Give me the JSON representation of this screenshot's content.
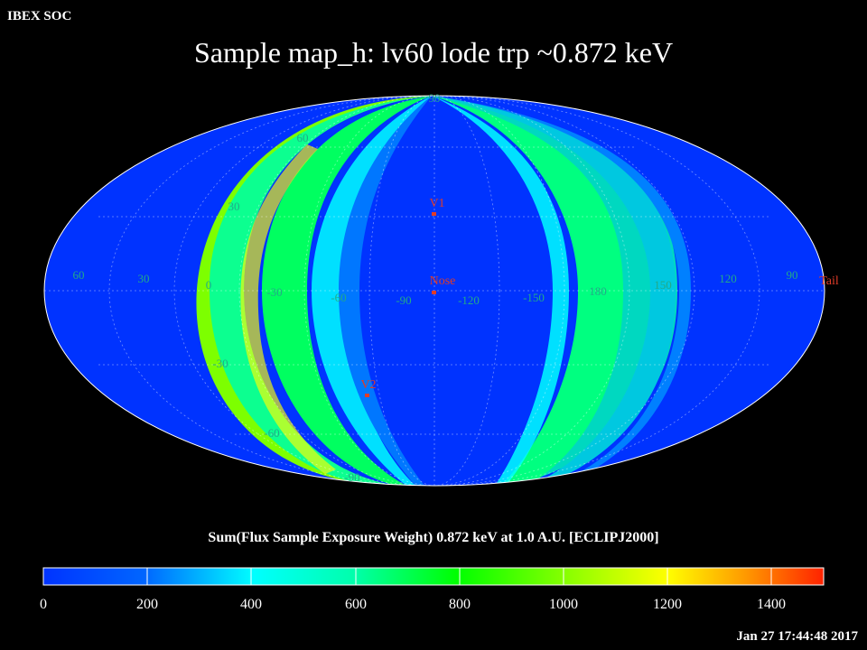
{
  "header": {
    "org_label": "IBEX SOC",
    "title": "Sample map_h: lv60 lode trp ~0.872 keV",
    "timestamp": "Jan 27 17:44:48 2017"
  },
  "colorbar": {
    "label": "Sum(Flux Sample Exposure Weight)  0.872 keV at 1.0 A.U. [ECLIPJ2000]",
    "ticks": [
      "0",
      "200",
      "400",
      "600",
      "800",
      "1000",
      "1200",
      "1400"
    ],
    "range": [
      0,
      1500
    ]
  },
  "map": {
    "projection": "Mollweide (ecliptic longitude / latitude)",
    "background_color": "#0033ff",
    "lon_labels": [
      "60",
      "30",
      "0",
      "-30",
      "-60",
      "-90",
      "-120",
      "-150",
      "180",
      "150",
      "120",
      "90"
    ],
    "lat_labels": [
      "90",
      "60",
      "30",
      "-30",
      "-60",
      "-90"
    ],
    "markers": [
      {
        "name": "V1",
        "color": "#e03c28"
      },
      {
        "name": "Nose",
        "color": "#e03c28"
      },
      {
        "name": "V2",
        "color": "#e03c28"
      },
      {
        "name": "Tail",
        "color": "#e03c28"
      }
    ]
  }
}
